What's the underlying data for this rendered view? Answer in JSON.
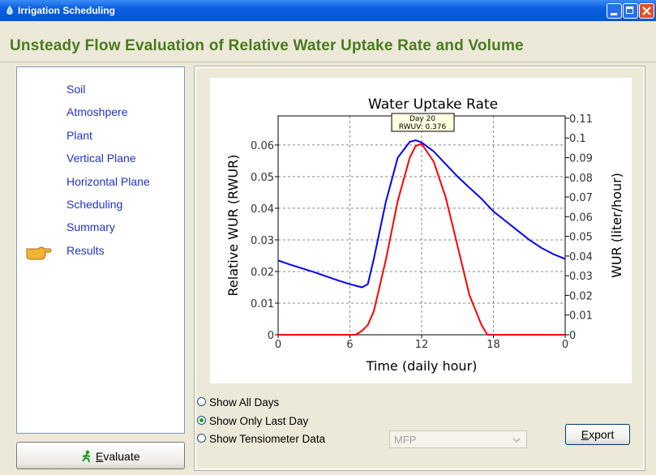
{
  "window": {
    "title": "Irrigation Scheduling"
  },
  "header": {
    "title": "Unsteady Flow Evaluation of Relative Water Uptake Rate and Volume"
  },
  "nav": {
    "items": [
      "Soil",
      "Atmoshpere",
      "Plant",
      "Vertical Plane",
      "Horizontal Plane",
      "Scheduling",
      "Summary",
      "Results"
    ],
    "selected": 7
  },
  "buttons": {
    "evaluate": "Evaluate",
    "export": "Export"
  },
  "options": {
    "items": [
      "Show All Days",
      "Show Only Last Day",
      "Show Tensiometer Data"
    ],
    "selected": 1
  },
  "combo": {
    "value": "MFP"
  },
  "chart_data": {
    "type": "line",
    "title": "Water Uptake Rate",
    "x_label": "Time (daily hour)",
    "y_label": "Relative WUR (RWUR)",
    "y2_label": "WUR (liter/hour)",
    "tooltip": [
      "Day 20",
      "RWUV: 0.376"
    ],
    "x": [
      0,
      1,
      2,
      3,
      4,
      5,
      6,
      6.5,
      7,
      7.5,
      8,
      9,
      10,
      11,
      11.5,
      12,
      13,
      14,
      15,
      16,
      17,
      17.5,
      18,
      19,
      20,
      21,
      22,
      23,
      24
    ],
    "series": [
      {
        "color": "#0000ff",
        "values": [
          0.0235,
          0.0222,
          0.021,
          0.0198,
          0.0185,
          0.0172,
          0.016,
          0.0155,
          0.015,
          0.016,
          0.024,
          0.042,
          0.056,
          0.061,
          0.0615,
          0.0608,
          0.058,
          0.054,
          0.05,
          0.0465,
          0.043,
          0.041,
          0.039,
          0.036,
          0.033,
          0.03,
          0.0275,
          0.0255,
          0.024
        ]
      },
      {
        "color": "#ff0000",
        "axis": "y2",
        "values": [
          0,
          0,
          0,
          0,
          0,
          0,
          0,
          0,
          0.002,
          0.005,
          0.012,
          0.038,
          0.068,
          0.09,
          0.096,
          0.097,
          0.088,
          0.07,
          0.045,
          0.02,
          0.005,
          0,
          0,
          0,
          0,
          0,
          0,
          0,
          0
        ]
      }
    ],
    "xlim": [
      0,
      24
    ],
    "xticks": [
      0,
      6,
      12,
      18,
      {
        "value": 24,
        "label": "0"
      }
    ],
    "ylim": [
      0,
      0.0692
    ],
    "yticks": [
      0,
      0.01,
      0.02,
      0.03,
      0.04,
      0.05,
      0.06
    ],
    "y2lim": [
      0,
      0.1112
    ],
    "y2ticks": [
      0,
      0.01,
      0.02,
      0.03,
      0.04,
      0.05,
      0.06,
      0.07,
      0.08,
      0.09,
      0.1,
      0.11
    ],
    "grid": true
  }
}
